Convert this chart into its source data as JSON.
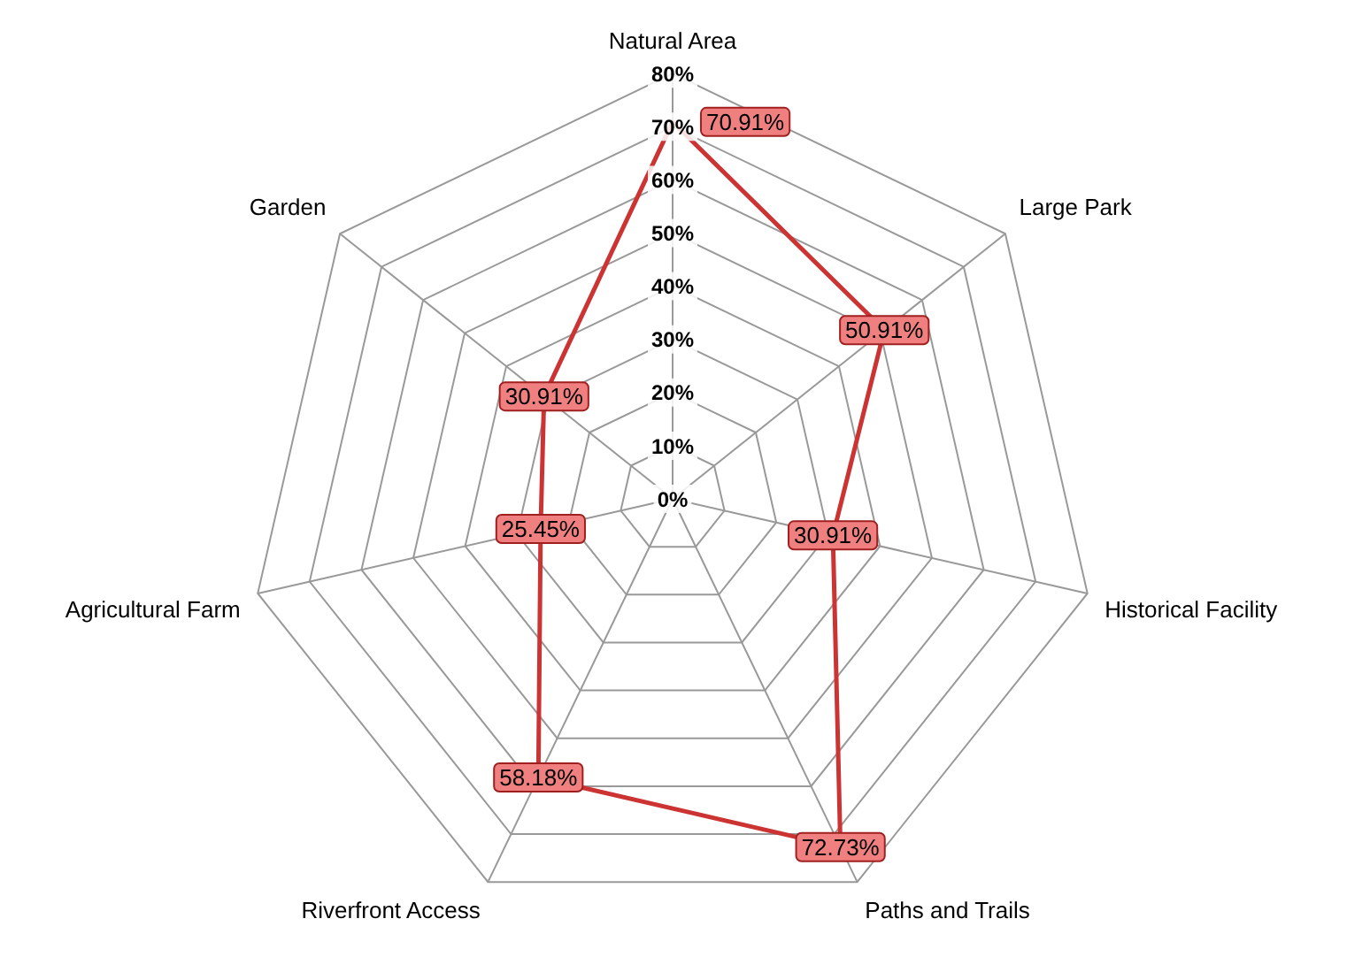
{
  "chart_data": {
    "type": "radar",
    "categories": [
      "Natural Area",
      "Large Park",
      "Historical Facility",
      "Paths and Trails",
      "Riverfront Access",
      "Agricultural Farm",
      "Garden"
    ],
    "series": [
      {
        "color": "#cc3333",
        "values": [
          70.91,
          50.91,
          30.91,
          72.73,
          58.18,
          25.45,
          30.91
        ],
        "value_labels": [
          "70.91%",
          "50.91%",
          "30.91%",
          "72.73%",
          "58.18%",
          "25.45%",
          "30.91%"
        ]
      }
    ],
    "ylim": [
      0,
      80
    ],
    "yticks": [
      {
        "value": 0,
        "label": "0%"
      },
      {
        "value": 10,
        "label": "10%"
      },
      {
        "value": 20,
        "label": "20%"
      },
      {
        "value": 30,
        "label": "30%"
      },
      {
        "value": 40,
        "label": "40%"
      },
      {
        "value": 50,
        "label": "50%"
      },
      {
        "value": 60,
        "label": "60%"
      },
      {
        "value": 70,
        "label": "70%"
      },
      {
        "value": 80,
        "label": "80%"
      }
    ],
    "grid": true,
    "legend": false
  }
}
